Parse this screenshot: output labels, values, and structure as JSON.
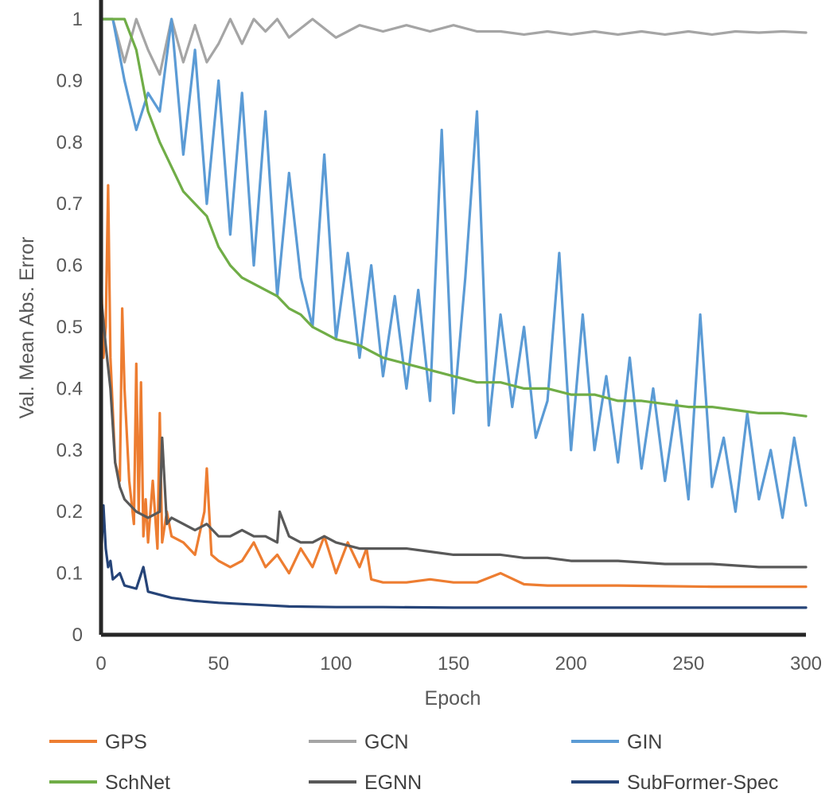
{
  "chart_data": {
    "type": "line",
    "title": "",
    "xlabel": "Epoch",
    "ylabel": "Val. Mean Abs. Error",
    "xlim": [
      0,
      300
    ],
    "ylim": [
      0,
      1
    ],
    "x_ticks": [
      "0",
      "50",
      "100",
      "150",
      "200",
      "250",
      "300"
    ],
    "y_ticks": [
      "0",
      "0.1",
      "0.2",
      "0.3",
      "0.4",
      "0.5",
      "0.6",
      "0.7",
      "0.8",
      "0.9",
      "1"
    ],
    "grid": false,
    "legend_position": "bottom",
    "series": [
      {
        "name": "GPS",
        "color": "#ED7D31",
        "x": [
          0,
          1,
          2,
          3,
          4,
          6,
          8,
          9,
          10,
          12,
          14,
          15,
          16,
          17,
          18,
          19,
          20,
          22,
          24,
          25,
          26,
          28,
          30,
          35,
          40,
          44,
          45,
          47,
          50,
          55,
          60,
          65,
          70,
          75,
          80,
          85,
          90,
          95,
          100,
          105,
          110,
          113,
          115,
          120,
          130,
          140,
          150,
          160,
          170,
          180,
          190,
          200,
          220,
          240,
          260,
          280,
          300
        ],
        "y": [
          0.6,
          0.45,
          0.5,
          0.73,
          0.45,
          0.28,
          0.25,
          0.53,
          0.4,
          0.25,
          0.18,
          0.44,
          0.2,
          0.41,
          0.16,
          0.22,
          0.15,
          0.25,
          0.14,
          0.36,
          0.15,
          0.2,
          0.16,
          0.15,
          0.13,
          0.2,
          0.27,
          0.13,
          0.12,
          0.11,
          0.12,
          0.15,
          0.11,
          0.13,
          0.1,
          0.14,
          0.11,
          0.16,
          0.1,
          0.15,
          0.11,
          0.14,
          0.09,
          0.085,
          0.085,
          0.09,
          0.085,
          0.085,
          0.1,
          0.082,
          0.08,
          0.08,
          0.08,
          0.079,
          0.078,
          0.078,
          0.078
        ]
      },
      {
        "name": "GCN",
        "color": "#A5A5A5",
        "x": [
          0,
          5,
          10,
          15,
          20,
          25,
          30,
          35,
          40,
          45,
          50,
          55,
          60,
          65,
          70,
          75,
          80,
          90,
          100,
          110,
          120,
          130,
          140,
          150,
          160,
          170,
          180,
          190,
          200,
          210,
          220,
          230,
          240,
          250,
          260,
          270,
          280,
          290,
          300
        ],
        "y": [
          1,
          1,
          0.93,
          1,
          0.95,
          0.91,
          1,
          0.93,
          0.99,
          0.93,
          0.96,
          1,
          0.96,
          1,
          0.98,
          1,
          0.97,
          1,
          0.97,
          0.99,
          0.98,
          0.99,
          0.98,
          0.99,
          0.98,
          0.98,
          0.975,
          0.98,
          0.975,
          0.98,
          0.975,
          0.98,
          0.975,
          0.98,
          0.975,
          0.98,
          0.978,
          0.98,
          0.978
        ]
      },
      {
        "name": "GIN",
        "color": "#5B9BD5",
        "x": [
          0,
          5,
          10,
          15,
          20,
          25,
          30,
          35,
          40,
          45,
          50,
          55,
          60,
          65,
          70,
          75,
          80,
          85,
          90,
          95,
          100,
          105,
          110,
          115,
          120,
          125,
          130,
          135,
          140,
          145,
          150,
          155,
          160,
          165,
          170,
          175,
          180,
          185,
          190,
          195,
          200,
          205,
          210,
          215,
          220,
          225,
          230,
          235,
          240,
          245,
          250,
          255,
          260,
          265,
          270,
          275,
          280,
          285,
          290,
          295,
          300
        ],
        "y": [
          1,
          1,
          0.9,
          0.82,
          0.88,
          0.85,
          1,
          0.78,
          0.95,
          0.7,
          0.9,
          0.65,
          0.88,
          0.6,
          0.85,
          0.55,
          0.75,
          0.58,
          0.5,
          0.78,
          0.48,
          0.62,
          0.45,
          0.6,
          0.42,
          0.55,
          0.4,
          0.56,
          0.38,
          0.82,
          0.36,
          0.58,
          0.85,
          0.34,
          0.52,
          0.37,
          0.5,
          0.32,
          0.38,
          0.62,
          0.3,
          0.52,
          0.3,
          0.42,
          0.28,
          0.45,
          0.27,
          0.4,
          0.25,
          0.38,
          0.22,
          0.52,
          0.24,
          0.32,
          0.2,
          0.36,
          0.22,
          0.3,
          0.19,
          0.32,
          0.21
        ]
      },
      {
        "name": "SchNet",
        "color": "#70AD47",
        "x": [
          0,
          5,
          10,
          15,
          20,
          25,
          30,
          35,
          40,
          45,
          50,
          55,
          60,
          65,
          70,
          75,
          80,
          85,
          90,
          95,
          100,
          110,
          120,
          130,
          140,
          150,
          160,
          170,
          180,
          190,
          200,
          210,
          220,
          230,
          240,
          250,
          260,
          270,
          280,
          290,
          300
        ],
        "y": [
          1,
          1,
          1,
          0.95,
          0.85,
          0.8,
          0.76,
          0.72,
          0.7,
          0.68,
          0.63,
          0.6,
          0.58,
          0.57,
          0.56,
          0.55,
          0.53,
          0.52,
          0.5,
          0.49,
          0.48,
          0.47,
          0.45,
          0.44,
          0.43,
          0.42,
          0.41,
          0.41,
          0.4,
          0.4,
          0.39,
          0.39,
          0.38,
          0.38,
          0.375,
          0.37,
          0.37,
          0.365,
          0.36,
          0.36,
          0.355
        ]
      },
      {
        "name": "EGNN",
        "color": "#595959",
        "x": [
          0,
          2,
          4,
          6,
          8,
          10,
          15,
          20,
          25,
          26,
          28,
          30,
          35,
          40,
          45,
          50,
          55,
          60,
          65,
          70,
          75,
          76,
          80,
          85,
          90,
          95,
          100,
          110,
          120,
          130,
          140,
          150,
          160,
          170,
          180,
          190,
          200,
          220,
          240,
          260,
          280,
          300
        ],
        "y": [
          0.55,
          0.47,
          0.4,
          0.28,
          0.24,
          0.22,
          0.2,
          0.19,
          0.2,
          0.32,
          0.18,
          0.19,
          0.18,
          0.17,
          0.18,
          0.16,
          0.16,
          0.17,
          0.16,
          0.16,
          0.15,
          0.2,
          0.16,
          0.15,
          0.15,
          0.16,
          0.15,
          0.14,
          0.14,
          0.14,
          0.135,
          0.13,
          0.13,
          0.13,
          0.125,
          0.125,
          0.12,
          0.12,
          0.115,
          0.115,
          0.11,
          0.11
        ]
      },
      {
        "name": "SubFormer-Spec",
        "color": "#264478",
        "x": [
          0,
          1,
          2,
          3,
          4,
          5,
          8,
          10,
          15,
          18,
          20,
          25,
          30,
          40,
          50,
          60,
          70,
          80,
          100,
          120,
          150,
          200,
          250,
          300
        ],
        "y": [
          0.12,
          0.21,
          0.14,
          0.11,
          0.12,
          0.09,
          0.1,
          0.08,
          0.075,
          0.11,
          0.07,
          0.065,
          0.06,
          0.055,
          0.052,
          0.05,
          0.048,
          0.046,
          0.045,
          0.045,
          0.044,
          0.044,
          0.044,
          0.044
        ]
      }
    ]
  }
}
